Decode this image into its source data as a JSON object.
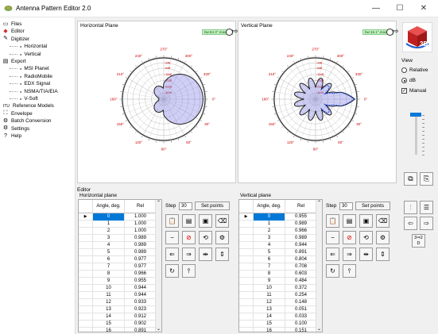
{
  "window": {
    "title": "Antenna Pattern Editor 2.0",
    "minimize": "—",
    "maximize": "☐",
    "close": "✕"
  },
  "sidebar": {
    "items": [
      {
        "label": "Files",
        "icon": "file-icon",
        "glyph": "▭"
      },
      {
        "label": "Editor",
        "icon": "editor-icon",
        "glyph": "◆",
        "color": "#d03030"
      },
      {
        "label": "Digitizer",
        "icon": "pencil-icon",
        "glyph": "✎"
      },
      {
        "label": "Horizontal",
        "child": true
      },
      {
        "label": "Vertical",
        "child": true
      },
      {
        "label": "Export",
        "icon": "export-icon",
        "glyph": "▤"
      },
      {
        "label": "MSI Planet",
        "child": true
      },
      {
        "label": "RadioMobile",
        "child": true
      },
      {
        "label": "EDX Signal",
        "child": true
      },
      {
        "label": "NSMA/TIA/EIA",
        "child": true
      },
      {
        "label": "V-Soft",
        "child": true
      },
      {
        "label": "Reference Models",
        "icon": "itu-icon",
        "glyph": "ITU"
      },
      {
        "label": "Envelope",
        "icon": "envelope-icon",
        "glyph": "⛶"
      },
      {
        "label": "Batch Conversion",
        "icon": "batch-icon",
        "glyph": "⚙"
      },
      {
        "label": "Settings",
        "icon": "gear-icon",
        "glyph": "⚙"
      },
      {
        "label": "Help",
        "icon": "help-icon",
        "glyph": "?"
      }
    ]
  },
  "plots": {
    "horizontal": {
      "title": "Horizontal Plane",
      "legend": "bw:64.3°,max:0°"
    },
    "vertical": {
      "title": "Vertical Plane",
      "legend": "bw:16.1°,max:0°"
    },
    "angle_labels": [
      "270°",
      "300°",
      "330°",
      "0°",
      "30°",
      "60°",
      "90°",
      "120°",
      "150°",
      "180°",
      "210°",
      "240°"
    ],
    "ring_labels": [
      "-3dB",
      "-6dB",
      "-10dB",
      "-15dB",
      "-20dB",
      "-30dB"
    ]
  },
  "view": {
    "label": "View",
    "options": [
      {
        "label": "Relative",
        "selected": false
      },
      {
        "label": "dB",
        "selected": true
      }
    ],
    "manual": {
      "label": "Manual",
      "checked": true
    },
    "button_3d": "3D"
  },
  "editor": {
    "label": "Editor",
    "horizontal": {
      "title": "Horizontal plane",
      "col_angle": "Angle, deg.",
      "col_rel": "Rel",
      "selected_row": 0,
      "rows": [
        [
          "0",
          "1.000"
        ],
        [
          "1",
          "1.000"
        ],
        [
          "2",
          "1.000"
        ],
        [
          "3",
          "0.989"
        ],
        [
          "4",
          "0.989"
        ],
        [
          "5",
          "0.989"
        ],
        [
          "6",
          "0.977"
        ],
        [
          "7",
          "0.977"
        ],
        [
          "8",
          "0.966"
        ],
        [
          "9",
          "0.955"
        ],
        [
          "10",
          "0.944"
        ],
        [
          "11",
          "0.944"
        ],
        [
          "12",
          "0.933"
        ],
        [
          "13",
          "0.923"
        ],
        [
          "14",
          "0.912"
        ],
        [
          "15",
          "0.902"
        ],
        [
          "16",
          "0.891"
        ]
      ],
      "step_label": "Step",
      "step_value": "30",
      "set_points": "Set points"
    },
    "vertical": {
      "title": "Vertical plane",
      "col_angle": "Angle, deg.",
      "col_rel": "Rel",
      "selected_row": 0,
      "rows": [
        [
          "0",
          "0.955"
        ],
        [
          "1",
          "0.989"
        ],
        [
          "2",
          "0.966"
        ],
        [
          "3",
          "0.989"
        ],
        [
          "4",
          "0.944"
        ],
        [
          "5",
          "0.891"
        ],
        [
          "6",
          "0.804"
        ],
        [
          "7",
          "0.708"
        ],
        [
          "8",
          "0.603"
        ],
        [
          "9",
          "0.484"
        ],
        [
          "10",
          "0.372"
        ],
        [
          "11",
          "0.254"
        ],
        [
          "12",
          "0.148"
        ],
        [
          "13",
          "0.051"
        ],
        [
          "14",
          "0.033"
        ],
        [
          "15",
          "0.100"
        ],
        [
          "16",
          "0.151"
        ]
      ],
      "step_label": "Step",
      "step_value": "30",
      "set_points": "Set points"
    },
    "swap_label": "3⇒2 D"
  }
}
